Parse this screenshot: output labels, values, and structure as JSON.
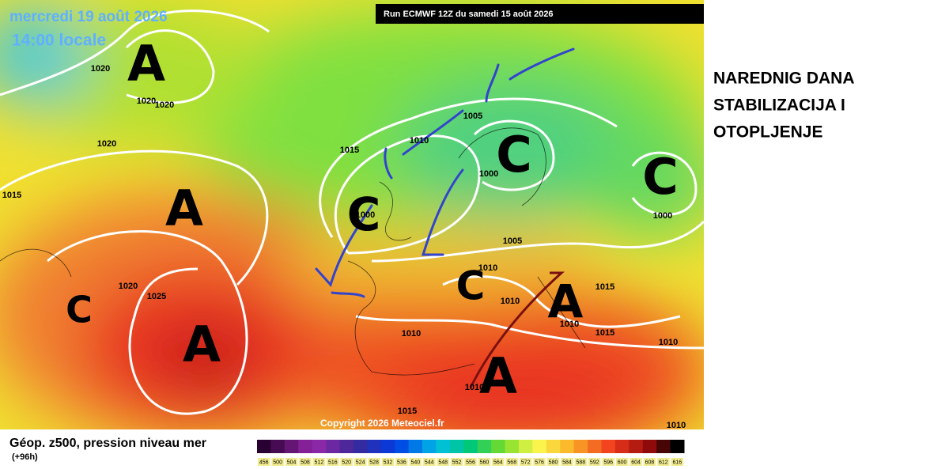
{
  "header": {
    "date": "mercredi 19 août 2026",
    "time": "14:00 locale",
    "run": "Run ECMWF 12Z du samedi 15 août 2026"
  },
  "annotation": {
    "lines": [
      "NAREDNIG DANA",
      "STABILIZACIJA I",
      "OTOPLJENJE"
    ]
  },
  "systems": [
    "A",
    "A",
    "A",
    "C",
    "C",
    "C",
    "C",
    "C",
    "A",
    "A"
  ],
  "isobar_labels": [
    "1020",
    "1020",
    "1020",
    "1020",
    "1015",
    "1015",
    "1010",
    "1005",
    "1000",
    "1000",
    "1000",
    "1005",
    "1010",
    "1010",
    "1015",
    "1015",
    "1010",
    "1010",
    "1010",
    "1020",
    "1025",
    "1015",
    "1010",
    "1010"
  ],
  "footer": {
    "title": "Géop. z500, pression niveau mer",
    "lead": "(+96h)",
    "copyright": "Copyright 2026 Meteociel.fr"
  },
  "legend": {
    "labels": [
      "456",
      "500",
      "504",
      "508",
      "512",
      "516",
      "520",
      "524",
      "528",
      "532",
      "536",
      "540",
      "544",
      "548",
      "552",
      "556",
      "560",
      "564",
      "568",
      "572",
      "576",
      "580",
      "584",
      "588",
      "592",
      "596",
      "600",
      "604",
      "608",
      "612",
      "616"
    ]
  }
}
